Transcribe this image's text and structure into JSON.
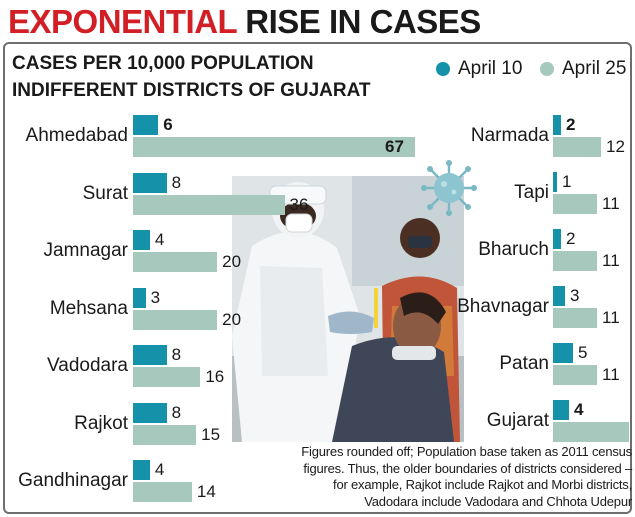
{
  "headline": {
    "part1": "EXPONENTIAL",
    "part2": " RISE IN CASES"
  },
  "subtitle": {
    "line1": "CASES PER 10,000 POPULATION",
    "line2": "INDIFFERENT DISTRICTS OF GUJARAT"
  },
  "legend": [
    {
      "label": "April 10",
      "color": "#1592a9"
    },
    {
      "label": "April 25",
      "color": "#a7c8bd"
    }
  ],
  "note": {
    "lines": [
      "Figures rounded off; Population base taken as 2011 census",
      "figures. Thus, the older boundaries of districts considered –",
      "for example, Rajkot include Rajkot and Morbi districts,",
      "Vadodara include Vadodara and Chhota Udepur"
    ]
  },
  "chart_data": {
    "type": "bar",
    "orientation": "horizontal",
    "series_names": [
      "April 10",
      "April 25"
    ],
    "panels": [
      {
        "categories": [
          "Ahmedabad",
          "Surat",
          "Jamnagar",
          "Mehsana",
          "Vadodara",
          "Rajkot",
          "Gandhinagar"
        ],
        "series": [
          {
            "name": "April 10",
            "values": [
              6,
              8,
              4,
              3,
              8,
              8,
              4
            ]
          },
          {
            "name": "April 25",
            "values": [
              67,
              36,
              20,
              20,
              16,
              15,
              14
            ]
          }
        ]
      },
      {
        "categories": [
          "Narmada",
          "Tapi",
          "Bharuch",
          "Bhavnagar",
          "Patan",
          "Gujarat"
        ],
        "series": [
          {
            "name": "April 10",
            "values": [
              2,
              1,
              2,
              3,
              5,
              4
            ]
          },
          {
            "name": "April 25",
            "values": [
              12,
              11,
              11,
              11,
              11,
              19
            ]
          }
        ]
      }
    ]
  }
}
